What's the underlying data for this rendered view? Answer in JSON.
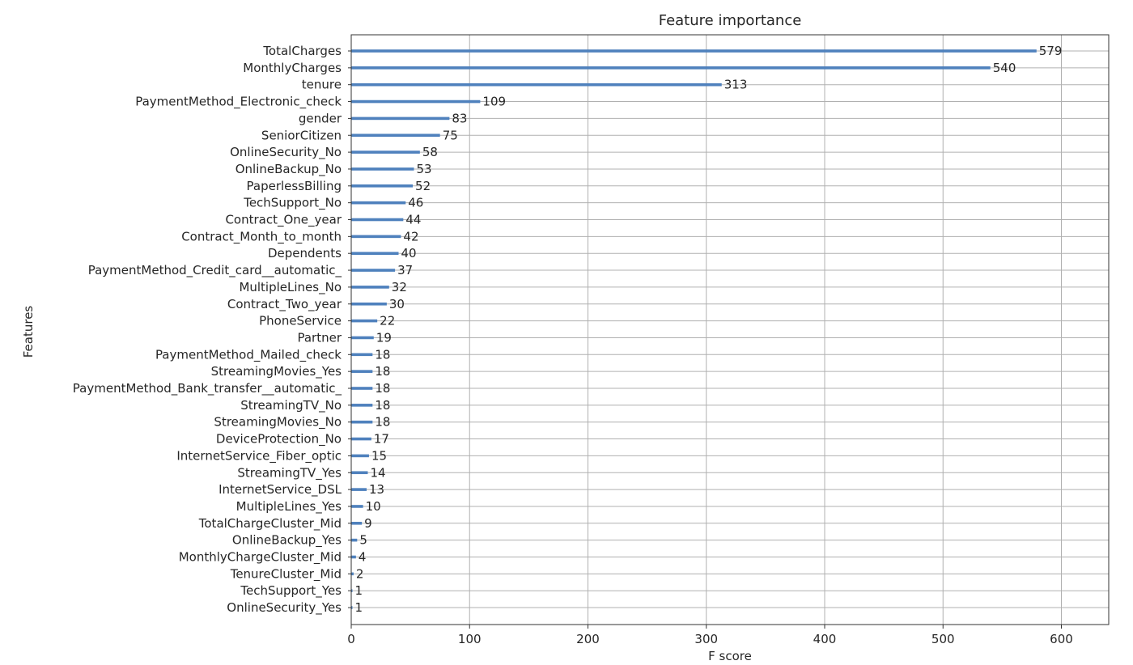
{
  "chart_data": {
    "type": "bar",
    "orientation": "horizontal",
    "title": "Feature importance",
    "xlabel": "F score",
    "ylabel": "Features",
    "xlim": [
      0,
      640
    ],
    "xticks": [
      0,
      100,
      200,
      300,
      400,
      500,
      600
    ],
    "grid": true,
    "bar_color": "#4f81bd",
    "categories": [
      "TotalCharges",
      "MonthlyCharges",
      "tenure",
      "PaymentMethod_Electronic_check",
      "gender",
      "SeniorCitizen",
      "OnlineSecurity_No",
      "OnlineBackup_No",
      "PaperlessBilling",
      "TechSupport_No",
      "Contract_One_year",
      "Contract_Month_to_month",
      "Dependents",
      "PaymentMethod_Credit_card__automatic_",
      "MultipleLines_No",
      "Contract_Two_year",
      "PhoneService",
      "Partner",
      "PaymentMethod_Mailed_check",
      "StreamingMovies_Yes",
      "PaymentMethod_Bank_transfer__automatic_",
      "StreamingTV_No",
      "StreamingMovies_No",
      "DeviceProtection_No",
      "InternetService_Fiber_optic",
      "StreamingTV_Yes",
      "InternetService_DSL",
      "MultipleLines_Yes",
      "TotalChargeCluster_Mid",
      "OnlineBackup_Yes",
      "MonthlyChargeCluster_Mid",
      "TenureCluster_Mid",
      "TechSupport_Yes",
      "OnlineSecurity_Yes"
    ],
    "values": [
      579,
      540,
      313,
      109,
      83,
      75,
      58,
      53,
      52,
      46,
      44,
      42,
      40,
      37,
      32,
      30,
      22,
      19,
      18,
      18,
      18,
      18,
      18,
      17,
      15,
      14,
      13,
      10,
      9,
      5,
      4,
      2,
      1,
      1
    ]
  }
}
